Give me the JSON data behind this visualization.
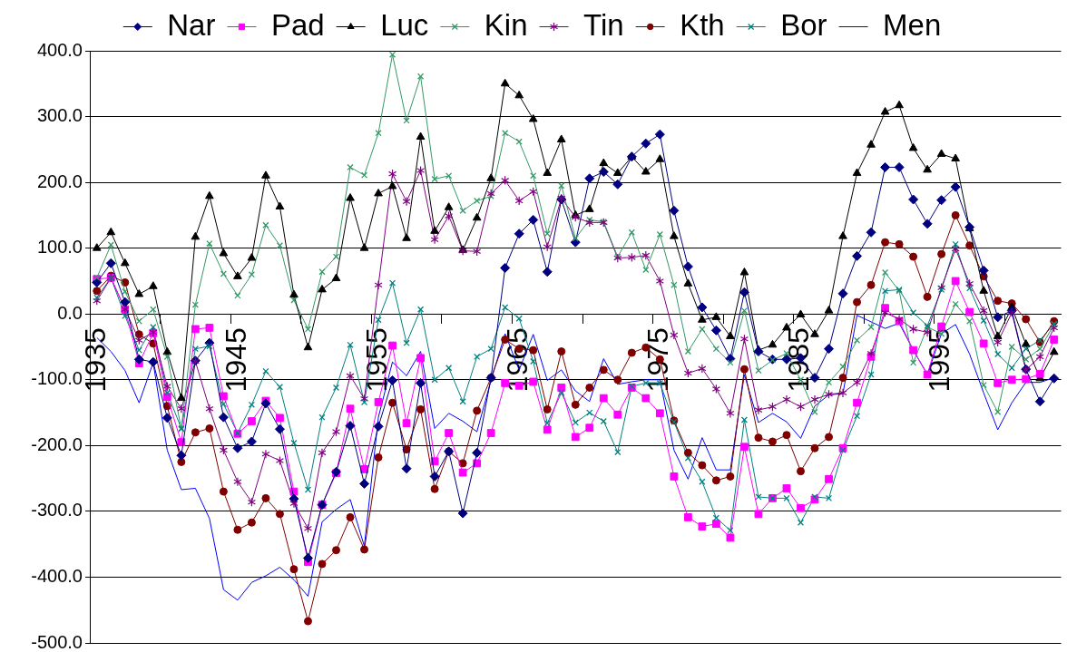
{
  "chart_data": {
    "type": "line",
    "legend": "top",
    "grid": "y",
    "categories": [
      "1935",
      null,
      null,
      null,
      null,
      null,
      null,
      null,
      null,
      null,
      "1945",
      null,
      null,
      null,
      null,
      null,
      null,
      null,
      null,
      null,
      "1955",
      null,
      null,
      null,
      null,
      null,
      null,
      null,
      null,
      null,
      "1965",
      null,
      null,
      null,
      null,
      null,
      null,
      null,
      null,
      null,
      "1975",
      null,
      null,
      null,
      null,
      null,
      null,
      null,
      null,
      null,
      "1985",
      null,
      null,
      null,
      null,
      null,
      null,
      null,
      null,
      null,
      "1995",
      null,
      null,
      null,
      null,
      null,
      null,
      null,
      null
    ],
    "ylim": [
      -500,
      400
    ],
    "yticks": [
      {
        "value": -500,
        "label": "-500.0"
      },
      {
        "value": -400,
        "label": "-400.0"
      },
      {
        "value": -300,
        "label": "-300.0"
      },
      {
        "value": -200,
        "label": "-200.0"
      },
      {
        "value": -100,
        "label": "-100.0"
      },
      {
        "value": 0,
        "label": "0.0"
      },
      {
        "value": 100,
        "label": "100.0"
      },
      {
        "value": 200,
        "label": "200.0"
      },
      {
        "value": 300,
        "label": "300.0"
      },
      {
        "value": 400,
        "label": "400.0"
      }
    ],
    "series": [
      {
        "name": "Nar",
        "color": "#000080",
        "marker": "diamond",
        "values": [
          48,
          77,
          18,
          -69,
          -73,
          -158,
          -215,
          -71,
          -44,
          -157,
          -204,
          -194,
          -136,
          -175,
          -281,
          -371,
          -290,
          -240,
          -170,
          -258,
          -171,
          -101,
          -235,
          -105,
          -247,
          -209,
          -303,
          -211,
          -97,
          70,
          122,
          143,
          64,
          174,
          109,
          206,
          216,
          197,
          239,
          259,
          273,
          157,
          72,
          10,
          -25,
          -68,
          33,
          -57,
          -69,
          -69,
          -67,
          -97,
          -53,
          31,
          88,
          124,
          223,
          223,
          174,
          137,
          173,
          193,
          132,
          66,
          -5,
          5,
          -84,
          -133,
          -98
        ]
      },
      {
        "name": "Pad",
        "color": "#ff00ff",
        "marker": "square",
        "values": [
          53,
          55,
          7,
          -75,
          -29,
          -126,
          -195,
          -23,
          -21,
          -125,
          -182,
          -163,
          -132,
          -158,
          -270,
          -377,
          -290,
          -242,
          -144,
          -236,
          -134,
          -48,
          -166,
          -67,
          -224,
          -181,
          -241,
          -227,
          -181,
          -105,
          -109,
          -103,
          -176,
          -112,
          -187,
          -173,
          -128,
          -153,
          -112,
          -128,
          -151,
          -247,
          -309,
          -323,
          -319,
          -340,
          -202,
          -304,
          -280,
          -265,
          -295,
          -282,
          -251,
          -204,
          -135,
          -65,
          9,
          -11,
          -55,
          -92,
          -19,
          50,
          3,
          -45,
          -105,
          -100,
          -99,
          -91,
          -39
        ]
      },
      {
        "name": "Luc",
        "color": "#000000",
        "marker": "triangle",
        "values": [
          100,
          124,
          77,
          30,
          42,
          -58,
          -128,
          117,
          179,
          92,
          57,
          85,
          210,
          163,
          29,
          -51,
          37,
          54,
          176,
          100,
          183,
          194,
          115,
          269,
          126,
          162,
          97,
          146,
          206,
          350,
          332,
          296,
          214,
          265,
          150,
          159,
          229,
          214,
          239,
          216,
          235,
          118,
          46,
          -9,
          -5,
          -34,
          63,
          -55,
          -47,
          -21,
          -1,
          -31,
          5,
          118,
          214,
          257,
          307,
          317,
          252,
          219,
          243,
          236,
          130,
          35,
          -34,
          10,
          -46,
          -98,
          -58
        ]
      },
      {
        "name": "Kin",
        "color": "#339966",
        "marker": "cross",
        "values": [
          55,
          105,
          34,
          -11,
          7,
          -65,
          -175,
          14,
          107,
          61,
          28,
          60,
          135,
          104,
          21,
          -23,
          64,
          87,
          223,
          211,
          275,
          394,
          294,
          361,
          205,
          210,
          157,
          172,
          179,
          275,
          262,
          210,
          122,
          195,
          115,
          143,
          140,
          87,
          124,
          67,
          121,
          44,
          -57,
          -23,
          -53,
          -74,
          5,
          -86,
          -70,
          -60,
          -100,
          -149,
          -104,
          -80,
          -40,
          -20,
          63,
          35,
          -74,
          -20,
          -30,
          15,
          -11,
          -108,
          -149,
          -50,
          -69,
          -53,
          -16
        ]
      },
      {
        "name": "Tin",
        "color": "#800080",
        "marker": "star",
        "values": [
          20,
          55,
          7,
          -40,
          -28,
          -110,
          -144,
          -72,
          -144,
          -207,
          -255,
          -286,
          -213,
          -223,
          -288,
          -326,
          -211,
          -179,
          -94,
          -129,
          44,
          213,
          171,
          218,
          113,
          149,
          96,
          95,
          183,
          203,
          172,
          186,
          102,
          176,
          147,
          139,
          139,
          85,
          86,
          89,
          50,
          -32,
          -90,
          -83,
          -114,
          -151,
          -38,
          -146,
          -141,
          -130,
          -141,
          -130,
          -122,
          -120,
          -104,
          -60,
          2,
          -8,
          -23,
          -28,
          40,
          99,
          46,
          5,
          -43,
          2,
          -85,
          -65,
          -21
        ]
      },
      {
        "name": "Kth",
        "color": "#800000",
        "marker": "circle",
        "values": [
          35,
          58,
          48,
          -31,
          -45,
          -140,
          -225,
          -180,
          -174,
          -270,
          -328,
          -317,
          -280,
          -304,
          -388,
          -467,
          -380,
          -359,
          -309,
          -358,
          -218,
          -135,
          -206,
          -145,
          -266,
          -209,
          -227,
          -147,
          -97,
          -39,
          -53,
          -55,
          -145,
          -57,
          -138,
          -112,
          -85,
          -100,
          -59,
          -51,
          -69,
          -162,
          -211,
          -230,
          -253,
          -247,
          -84,
          -188,
          -194,
          -184,
          -239,
          -204,
          -187,
          -97,
          18,
          44,
          109,
          106,
          87,
          26,
          91,
          150,
          104,
          57,
          20,
          16,
          -8,
          -43,
          -11
        ]
      },
      {
        "name": "Bor",
        "color": "#008080",
        "marker": "cross",
        "values": [
          25,
          55,
          -3,
          -55,
          -20,
          -120,
          -174,
          -53,
          -49,
          -137,
          -181,
          -138,
          -87,
          -111,
          -196,
          -267,
          -157,
          -112,
          -47,
          -134,
          -9,
          47,
          -44,
          7,
          -100,
          -82,
          -133,
          -65,
          -53,
          10,
          -7,
          -72,
          -166,
          -120,
          -165,
          -150,
          -163,
          -210,
          -110,
          -105,
          -105,
          -164,
          -219,
          -255,
          -310,
          -329,
          -161,
          -278,
          -280,
          -280,
          -317,
          -278,
          -280,
          -207,
          -155,
          -92,
          35,
          37,
          2,
          -18,
          37,
          106,
          39,
          -10,
          -61,
          -82,
          -53,
          -40,
          -15
        ]
      },
      {
        "name": "Men",
        "color": "#0000ff",
        "values": [
          -36,
          -57,
          -86,
          -135,
          -74,
          -207,
          -267,
          -265,
          -311,
          -419,
          -435,
          -408,
          -398,
          -385,
          -404,
          -429,
          -316,
          -297,
          -282,
          -353,
          -157,
          -73,
          -94,
          -57,
          -174,
          -151,
          -163,
          -179,
          -101,
          -30,
          -85,
          -31,
          -101,
          -85,
          -117,
          -133,
          -68,
          -107,
          -103,
          -100,
          -100,
          -207,
          -251,
          -188,
          -237,
          -237,
          -92,
          -165,
          -151,
          -164,
          -189,
          -140,
          -123,
          -121,
          -2,
          -12,
          -22,
          -14,
          -55,
          -92,
          -30,
          -16,
          -61,
          -120,
          -176,
          -135,
          -104,
          -104,
          -97
        ]
      }
    ]
  }
}
